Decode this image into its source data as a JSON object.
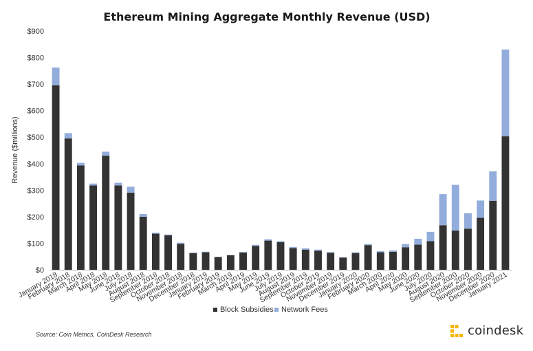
{
  "source_text": "Source: Coin Metrics, CoinDesk Research",
  "brand": {
    "name": "coindesk",
    "logo_icon": "coindesk-logo-icon",
    "logo_color": "#f7b500"
  },
  "chart_data": {
    "type": "bar",
    "stacked": true,
    "title": "Ethereum Mining Aggregate Monthly Revenue (USD)",
    "xlabel": "",
    "ylabel": "Revenue ($millions)",
    "ylim": [
      0,
      900
    ],
    "yticks": [
      0,
      100,
      200,
      300,
      400,
      500,
      600,
      700,
      800,
      900
    ],
    "ytick_labels": [
      "$0",
      "$100",
      "$200",
      "$300",
      "$400",
      "$500",
      "$600",
      "$700",
      "$800",
      "$900"
    ],
    "grid": false,
    "legend_position": "bottom-center",
    "categories": [
      "January 2018",
      "February 2018",
      "March 2018",
      "April 2018",
      "May 2018",
      "June 2018",
      "July 2018",
      "August 2018",
      "September 2018",
      "October 2018",
      "November 2018",
      "December 2018",
      "January 2019",
      "February 2019",
      "March 2019",
      "April 2019",
      "May 2019",
      "June 2019",
      "July 2019",
      "August 2019",
      "September 2019",
      "October 2019",
      "November 2019",
      "December 2019",
      "January 2020",
      "February 2020",
      "March 2020",
      "April 2020",
      "May 2020",
      "June 2020",
      "July 2020",
      "August 2020",
      "September 2020",
      "October 2020",
      "November 2020",
      "December 2020",
      "January 2021"
    ],
    "series": [
      {
        "name": "Block Subsidies",
        "color": "#333333",
        "values": [
          695,
          495,
          393,
          318,
          430,
          318,
          291,
          200,
          136,
          130,
          98,
          63,
          66,
          48,
          55,
          65,
          90,
          110,
          104,
          82,
          76,
          72,
          64,
          46,
          63,
          93,
          66,
          68,
          85,
          95,
          108,
          168,
          148,
          155,
          196,
          260,
          503
        ]
      },
      {
        "name": "Network Fees",
        "color": "#92acdb",
        "values": [
          67,
          20,
          10,
          7,
          15,
          10,
          22,
          10,
          4,
          3,
          4,
          2,
          2,
          1,
          1,
          2,
          4,
          5,
          4,
          4,
          5,
          4,
          3,
          2,
          3,
          4,
          4,
          5,
          12,
          22,
          35,
          117,
          172,
          58,
          65,
          111,
          327
        ]
      }
    ]
  }
}
